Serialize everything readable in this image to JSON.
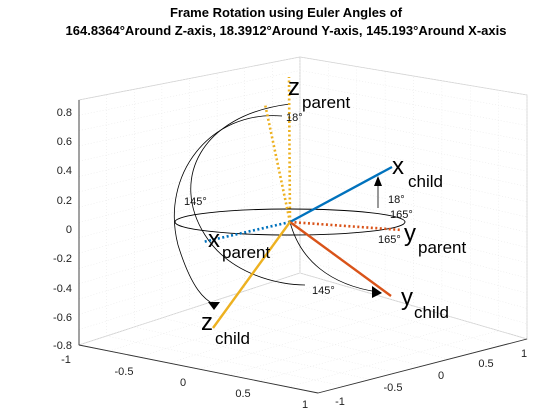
{
  "chart_data": {
    "type": "3d-line",
    "title_line1": "Frame Rotation using Euler Angles of",
    "title_line2": "164.8364°Around Z-axis, 18.3912°Around Y-axis, 145.193°Around X-axis",
    "euler_angles_deg": {
      "z": 164.8364,
      "y": 18.3912,
      "x": 145.193
    },
    "zlim": [
      -0.8,
      0.8
    ],
    "ztick_labels": [
      "-0.8",
      "-0.6",
      "-0.4",
      "-0.2",
      "0",
      "0.2",
      "0.4",
      "0.6",
      "0.8"
    ],
    "xtick_labels": [
      "-1",
      "-0.5",
      "0",
      "0.5",
      "1"
    ],
    "ytick_labels": [
      "-1",
      "-0.5",
      "0",
      "0.5",
      "1"
    ],
    "grid": true,
    "parent_frame": {
      "x": {
        "label_main": "x",
        "label_sub": "parent",
        "vector": [
          1,
          0,
          0
        ],
        "color": "#0072BD",
        "style": "dotted"
      },
      "y": {
        "label_main": "y",
        "label_sub": "parent",
        "vector": [
          0,
          1,
          0
        ],
        "color": "#D95319",
        "style": "dotted"
      },
      "z": {
        "label_main": "z",
        "label_sub": "parent",
        "vector": [
          0,
          0,
          1
        ],
        "color": "#EDB120",
        "style": "dotted"
      }
    },
    "child_frame": {
      "x": {
        "label_main": "x",
        "label_sub": "child",
        "color": "#0072BD",
        "style": "solid"
      },
      "y": {
        "label_main": "y",
        "label_sub": "child",
        "color": "#D95319",
        "style": "solid"
      },
      "z": {
        "label_main": "z",
        "label_sub": "child",
        "color": "#EDB120",
        "style": "solid"
      }
    },
    "angle_annotations": [
      {
        "axis": "z",
        "text": "165°"
      },
      {
        "axis": "z",
        "text": "165°"
      },
      {
        "axis": "y",
        "text": "18°"
      },
      {
        "axis": "y",
        "text": "18°"
      },
      {
        "axis": "x",
        "text": "145°"
      },
      {
        "axis": "x",
        "text": "145°"
      }
    ]
  }
}
